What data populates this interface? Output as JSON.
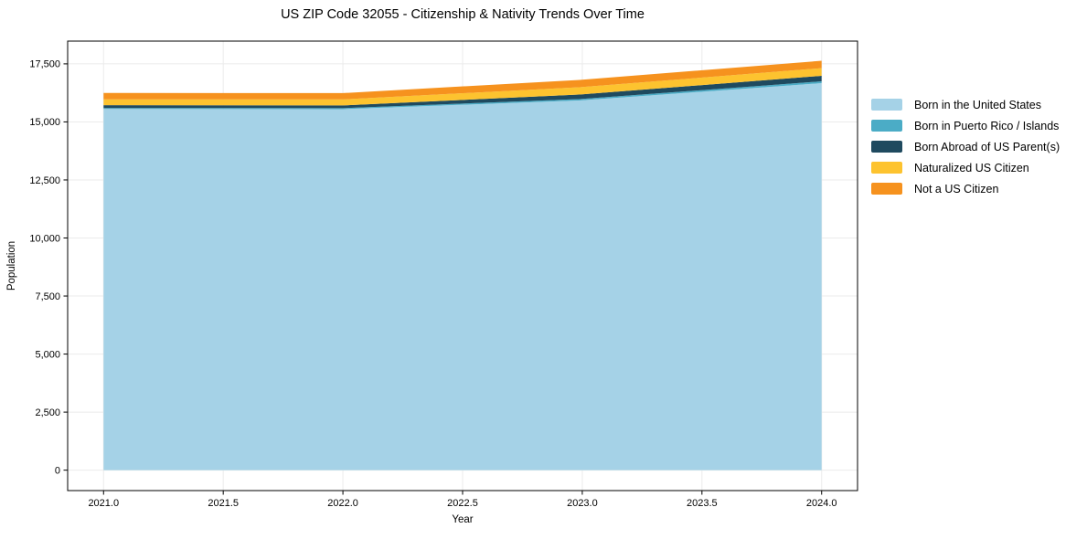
{
  "title": "US ZIP Code 32055 - Citizenship & Nativity Trends Over Time",
  "style": {
    "background": "#FFFFFF",
    "grid_color": "#EBEBEB",
    "spine_color": "#000000",
    "text_color": "#000000"
  },
  "chart_data": {
    "type": "area",
    "stacked": true,
    "title": "US ZIP Code 32055 - Citizenship & Nativity Trends Over Time",
    "xlabel": "Year",
    "ylabel": "Population",
    "x": [
      2021,
      2022,
      2023,
      2024
    ],
    "series": [
      {
        "name": "Born in the United States",
        "color": "#A5D2E7",
        "values": [
          15560,
          15550,
          15930,
          16670
        ]
      },
      {
        "name": "Born in Puerto Rico / Islands",
        "color": "#4BACC6",
        "values": [
          40,
          40,
          60,
          80
        ]
      },
      {
        "name": "Born Abroad of US Parent(s)",
        "color": "#1F4A5F",
        "values": [
          120,
          120,
          195,
          235
        ]
      },
      {
        "name": "Naturalized US Citizen",
        "color": "#FDC32F",
        "values": [
          255,
          260,
          315,
          330
        ]
      },
      {
        "name": "Not a US Citizen",
        "color": "#F6921E",
        "values": [
          270,
          270,
          315,
          320
        ]
      }
    ],
    "x_ticks": [
      2021.0,
      2021.5,
      2022.0,
      2022.5,
      2023.0,
      2023.5,
      2024.0
    ],
    "x_tick_labels": [
      "2021.0",
      "2021.5",
      "2022.0",
      "2022.5",
      "2023.0",
      "2023.5",
      "2024.0"
    ],
    "y_ticks": [
      0,
      2500,
      5000,
      7500,
      10000,
      12500,
      15000,
      17500
    ],
    "y_tick_labels": [
      "0",
      "2,500",
      "5,000",
      "7,500",
      "10,000",
      "12,500",
      "15,000",
      "17,500"
    ],
    "xlim": [
      2020.85,
      2024.15
    ],
    "ylim": [
      -880,
      18480
    ],
    "grid": true,
    "legend_position": "right"
  }
}
